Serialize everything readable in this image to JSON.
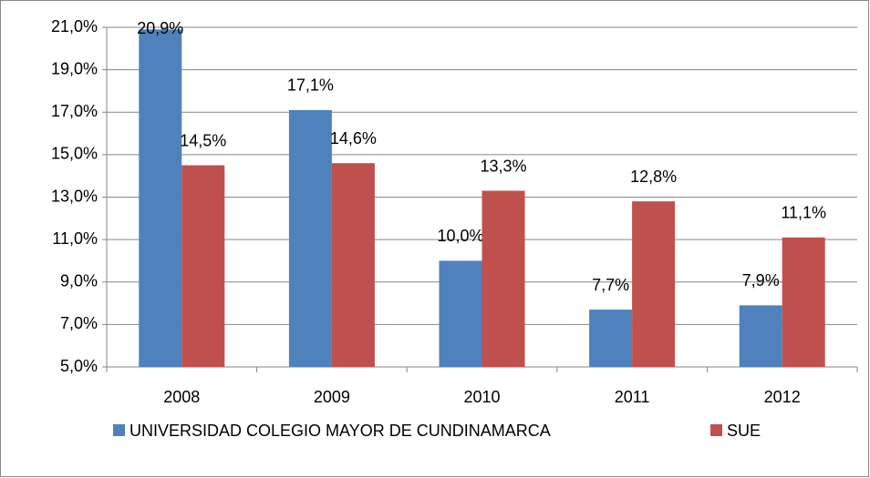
{
  "chart_data": {
    "type": "bar",
    "categories": [
      "2008",
      "2009",
      "2010",
      "2011",
      "2012"
    ],
    "series": [
      {
        "name": "UNIVERSIDAD COLEGIO MAYOR DE CUNDINAMARCA",
        "color": "#4f81bd",
        "values": [
          20.9,
          17.1,
          10.0,
          7.7,
          7.9
        ],
        "value_labels": [
          "20,9%",
          "17,1%",
          "10,0%",
          "7,7%",
          "7,9%"
        ]
      },
      {
        "name": "SUE",
        "color": "#c0504d",
        "values": [
          14.5,
          14.6,
          13.3,
          12.8,
          11.1
        ],
        "value_labels": [
          "14,5%",
          "14,6%",
          "13,3%",
          "12,8%",
          "11,1%"
        ]
      }
    ],
    "ylim": [
      5,
      21
    ],
    "yticks": [
      {
        "value": 5,
        "label": "5,0%"
      },
      {
        "value": 7,
        "label": "7,0%"
      },
      {
        "value": 9,
        "label": "9,0%"
      },
      {
        "value": 11,
        "label": "11,0%"
      },
      {
        "value": 13,
        "label": "13,0%"
      },
      {
        "value": 15,
        "label": "15,0%"
      },
      {
        "value": 17,
        "label": "17,0%"
      },
      {
        "value": 19,
        "label": "19,0%"
      },
      {
        "value": 21,
        "label": "21,0%"
      }
    ],
    "grid": true,
    "legend": "bottom"
  }
}
